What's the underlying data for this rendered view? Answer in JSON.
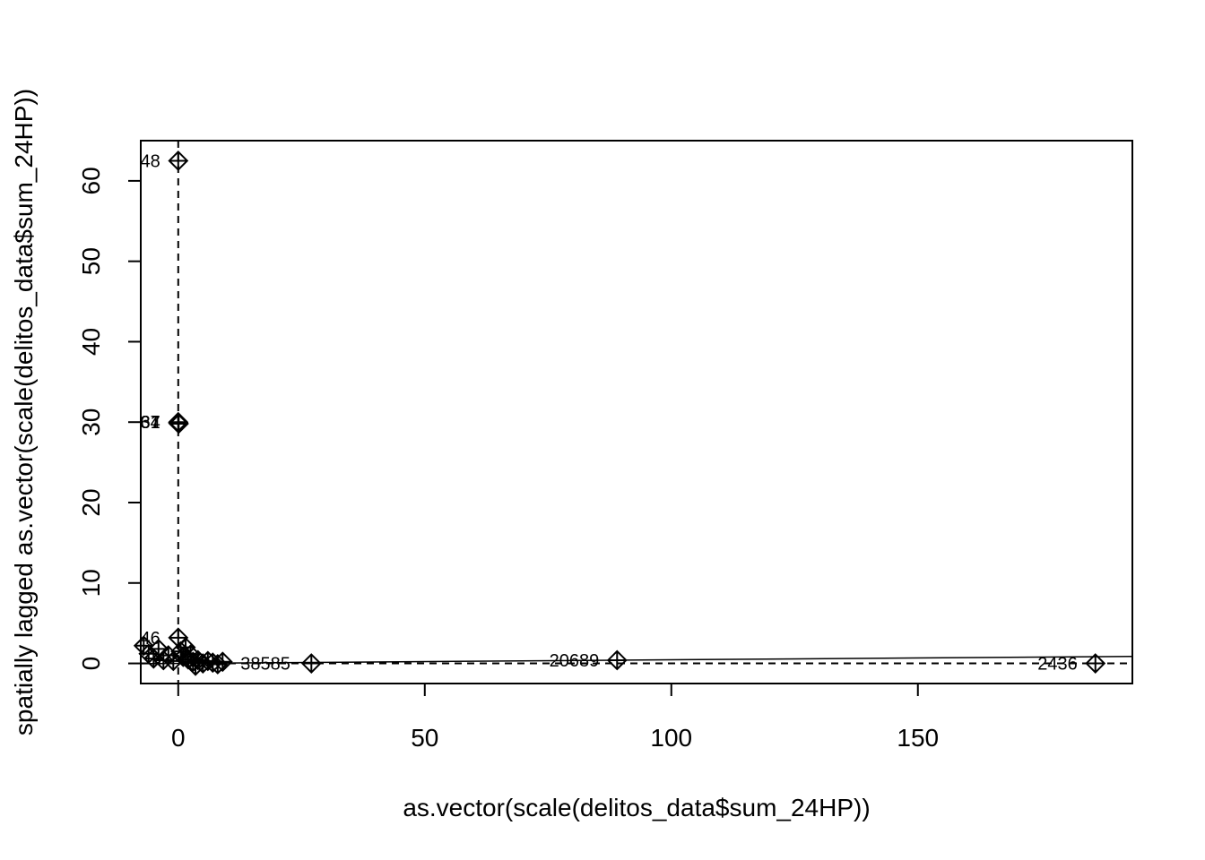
{
  "chart_data": {
    "type": "scatter",
    "title": "",
    "xlabel": "as.vector(scale(delitos_data$sum_24HP))",
    "ylabel": "spatially lagged as.vector(scale(delitos_data$sum_24HP))",
    "xlim": [
      -7.6,
      193.5
    ],
    "ylim": [
      -2.5,
      65
    ],
    "x_ticks": [
      0,
      50,
      100,
      150
    ],
    "y_ticks": [
      0,
      10,
      20,
      30,
      40,
      50,
      60
    ],
    "x_tick_labels": [
      "0",
      "50",
      "100",
      "150"
    ],
    "y_tick_labels": [
      "0",
      "10",
      "20",
      "30",
      "40",
      "50",
      "60"
    ],
    "grid": false,
    "reference_lines": {
      "vertical_x": 0,
      "horizontal_y": 0,
      "style": "dashed"
    },
    "regression_line": {
      "intercept": 0.0,
      "slope": 0.0045
    },
    "points": [
      {
        "x": 0.0,
        "y": 62.5
      },
      {
        "x": 0.0,
        "y": 30.0
      },
      {
        "x": 0.1,
        "y": 29.8
      },
      {
        "x": 0.0,
        "y": 29.9
      },
      {
        "x": 0.0,
        "y": 3.2
      },
      {
        "x": -7.0,
        "y": 2.2
      },
      {
        "x": -6.0,
        "y": 1.2
      },
      {
        "x": -5.0,
        "y": 0.6
      },
      {
        "x": -4.0,
        "y": 1.8
      },
      {
        "x": -3.0,
        "y": 0.4
      },
      {
        "x": -2.0,
        "y": 1.0
      },
      {
        "x": -1.0,
        "y": 0.3
      },
      {
        "x": 0.5,
        "y": 1.5
      },
      {
        "x": 1.0,
        "y": 0.8
      },
      {
        "x": 1.5,
        "y": 2.0
      },
      {
        "x": 2.0,
        "y": 0.5
      },
      {
        "x": 2.5,
        "y": 1.1
      },
      {
        "x": 3.0,
        "y": 0.2
      },
      {
        "x": 3.5,
        "y": -0.3
      },
      {
        "x": 4.0,
        "y": 0.4
      },
      {
        "x": 5.0,
        "y": 0.0
      },
      {
        "x": 6.0,
        "y": 0.3
      },
      {
        "x": 7.0,
        "y": 0.1
      },
      {
        "x": 8.0,
        "y": -0.1
      },
      {
        "x": 9.0,
        "y": 0.2
      },
      {
        "x": 27.0,
        "y": 0.0
      },
      {
        "x": 89.0,
        "y": 0.4
      },
      {
        "x": 186.0,
        "y": 0.0
      }
    ],
    "point_labels": [
      {
        "text": "48",
        "x": 0.0,
        "y": 62.5
      },
      {
        "text": "31",
        "x": 0.0,
        "y": 30.0
      },
      {
        "text": "67",
        "x": 0.0,
        "y": 30.0
      },
      {
        "text": "34",
        "x": 0.0,
        "y": 30.0
      },
      {
        "text": "46",
        "x": 0.0,
        "y": 3.2
      },
      {
        "text": "38585",
        "x": 9.0,
        "y": 0.0
      },
      {
        "text": "20689",
        "x": 89.0,
        "y": 0.4
      },
      {
        "text": "2436",
        "x": 186.0,
        "y": 0.0
      }
    ]
  }
}
